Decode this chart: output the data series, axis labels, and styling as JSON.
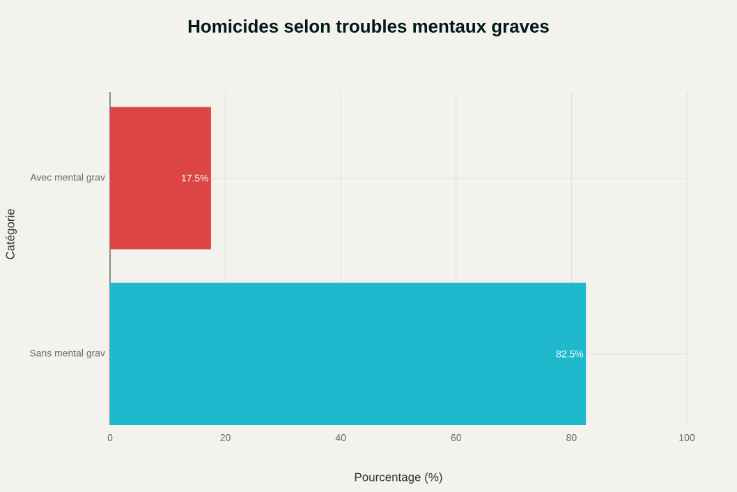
{
  "chart_data": {
    "type": "bar",
    "orientation": "horizontal",
    "title": "Homicides selon troubles mentaux graves",
    "xlabel": "Pourcentage (%)",
    "ylabel": "Catégorie",
    "categories": [
      "Avec mental grav",
      "Sans mental grav"
    ],
    "values": [
      17.5,
      82.5
    ],
    "colors": [
      "#dd4444",
      "#1fb8cd"
    ],
    "value_labels": [
      "17.5%",
      "82.5%"
    ],
    "xlim": [
      0,
      100
    ],
    "xticks": [
      0,
      20,
      40,
      60,
      80,
      100
    ],
    "grid": true
  }
}
